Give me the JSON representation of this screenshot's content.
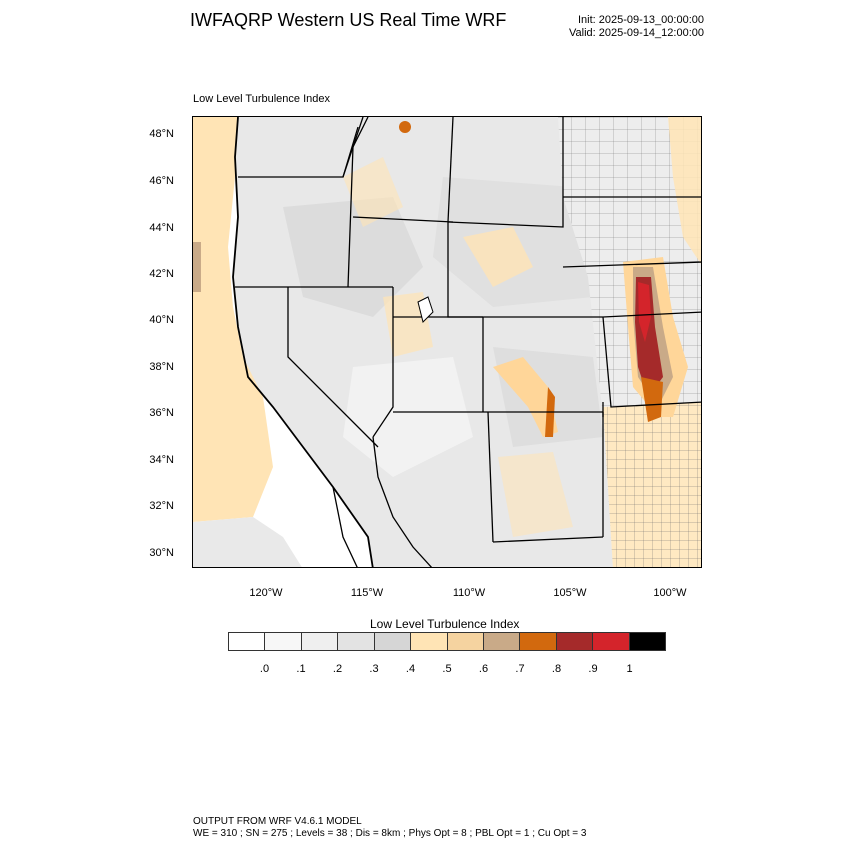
{
  "header": {
    "title": "IWFAQRP Western US Real Time WRF",
    "init": "Init: 2025-09-13_00:00:00",
    "valid": "Valid: 2025-09-14_12:00:00"
  },
  "plot": {
    "subtitle": "Low Level Turbulence Index",
    "lat_labels": [
      "48°N",
      "46°N",
      "44°N",
      "42°N",
      "40°N",
      "38°N",
      "36°N",
      "34°N",
      "32°N",
      "30°N"
    ],
    "lon_labels": [
      "120°W",
      "115°W",
      "110°W",
      "105°W",
      "100°W"
    ]
  },
  "colorbar": {
    "title": "Low Level Turbulence Index",
    "ticks": [
      ".0",
      ".1",
      ".2",
      ".3",
      ".4",
      ".5",
      ".6",
      ".7",
      ".8",
      ".9",
      "1"
    ],
    "colors": [
      "#ffffff",
      "#f7f7f7",
      "#efefef",
      "#e3e3e3",
      "#d6d6d6",
      "#ffe4b5",
      "#f5d3a0",
      "#c9aa88",
      "#d2690e",
      "#a52a2a",
      "#d4242b",
      "#000000"
    ]
  },
  "footer": {
    "line1": "OUTPUT FROM WRF V4.6.1 MODEL",
    "line2": "WE = 310 ; SN = 275 ; Levels = 38 ; Dis = 8km ; Phys Opt = 8 ; PBL Opt = 1 ; Cu Opt = 3"
  }
}
